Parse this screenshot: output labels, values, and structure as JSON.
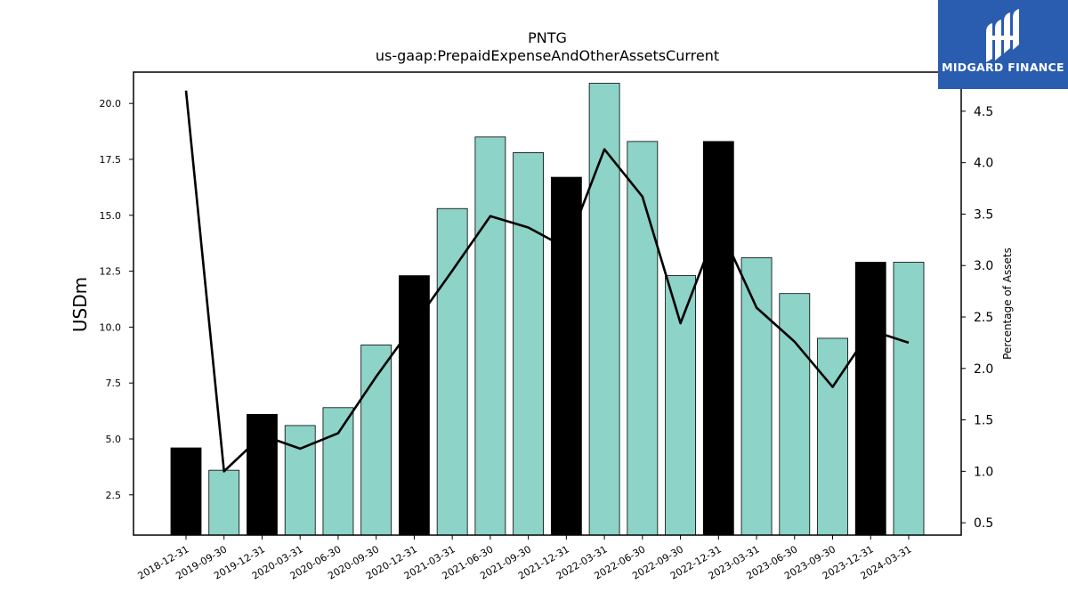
{
  "chart_data": {
    "type": "bar",
    "title": "PNTG",
    "subtitle": "us-gaap:PrepaidExpenseAndOtherAssetsCurrent",
    "ylabel": "USDm",
    "y2label": "Percentage of Assets",
    "categories": [
      "2018-12-31",
      "2019-09-30",
      "2019-12-31",
      "2020-03-31",
      "2020-06-30",
      "2020-09-30",
      "2020-12-31",
      "2021-03-31",
      "2021-06-30",
      "2021-09-30",
      "2021-12-31",
      "2022-03-31",
      "2022-06-30",
      "2022-09-30",
      "2022-12-31",
      "2023-03-31",
      "2023-06-30",
      "2023-09-30",
      "2023-12-31",
      "2024-03-31"
    ],
    "series": [
      {
        "type": "bar",
        "values": [
          4.6,
          3.6,
          6.1,
          5.6,
          6.4,
          9.2,
          12.3,
          15.3,
          18.5,
          17.8,
          16.7,
          20.9,
          18.3,
          12.3,
          18.3,
          13.1,
          11.5,
          9.5,
          12.9,
          12.9
        ],
        "axis": "left"
      },
      {
        "type": "line",
        "values": [
          4.7,
          1.0,
          1.35,
          1.22,
          1.37,
          1.92,
          2.43,
          2.95,
          3.48,
          3.37,
          3.17,
          4.13,
          3.67,
          2.44,
          3.4,
          2.59,
          2.26,
          1.82,
          2.37,
          2.25
        ],
        "axis": "right"
      }
    ],
    "highlight_indices": [
      0,
      2,
      6,
      10,
      14,
      18
    ],
    "colors": {
      "bar": "#8dd3c7",
      "highlight_bar": "#000000",
      "line": "#000000",
      "edge": "#000000"
    },
    "ylim": [
      0.7,
      21.4
    ],
    "y2lim": [
      0.38,
      4.88
    ],
    "yticks": [
      2.5,
      5.0,
      7.5,
      10.0,
      12.5,
      15.0,
      17.5,
      20.0
    ],
    "y2ticks": [
      0.5,
      1.0,
      1.5,
      2.0,
      2.5,
      3.0,
      3.5,
      4.0,
      4.5
    ],
    "grid": false,
    "legend": "none"
  },
  "logo": {
    "text": "MIDGARD FINANCE",
    "icon": "midgard-logo-icon"
  }
}
